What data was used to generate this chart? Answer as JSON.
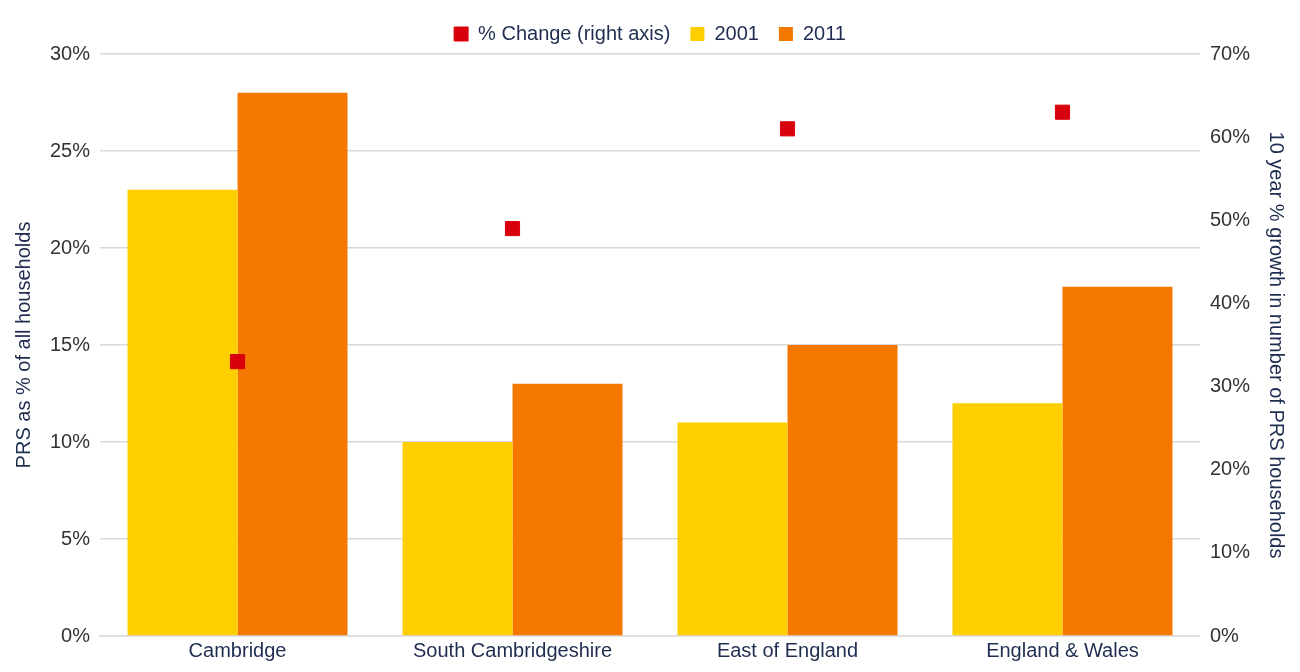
{
  "chart_data": {
    "type": "bar",
    "categories": [
      "Cambridge",
      "South Cambridgeshire",
      "East of England",
      "England & Wales"
    ],
    "series": [
      {
        "name": "2001",
        "color": "#fecf00",
        "values": [
          23,
          10,
          11,
          12
        ]
      },
      {
        "name": "2011",
        "color": "#f47700",
        "values": [
          28,
          13,
          15,
          18
        ]
      },
      {
        "name": "% Change (right axis)",
        "type": "scatter",
        "axis": "y2",
        "color": "#d9000d",
        "x": [
          "Cambridge",
          "South Cambridgeshire",
          "East of England",
          "England & Wales"
        ],
        "values": [
          33,
          49,
          61,
          63
        ]
      }
    ],
    "ylabel": "PRS as % of all households",
    "y2label": "10 year % growth in number of PRS households",
    "ylim": [
      0,
      30
    ],
    "yticks": [
      {
        "value": 0,
        "label": "0%"
      },
      {
        "value": 5,
        "label": "5%"
      },
      {
        "value": 10,
        "label": "10%"
      },
      {
        "value": 15,
        "label": "15%"
      },
      {
        "value": 20,
        "label": "20%"
      },
      {
        "value": 25,
        "label": "25%"
      },
      {
        "value": 30,
        "label": "30%"
      }
    ],
    "y2lim": [
      0,
      70
    ],
    "y2ticks": [
      {
        "value": 0,
        "label": "0%"
      },
      {
        "value": 10,
        "label": "10%"
      },
      {
        "value": 20,
        "label": "20%"
      },
      {
        "value": 30,
        "label": "30%"
      },
      {
        "value": 40,
        "label": "40%"
      },
      {
        "value": 50,
        "label": "50%"
      },
      {
        "value": 60,
        "label": "60%"
      },
      {
        "value": 70,
        "label": "70%"
      }
    ],
    "grid": "y",
    "legend": "top",
    "marker": "square"
  }
}
